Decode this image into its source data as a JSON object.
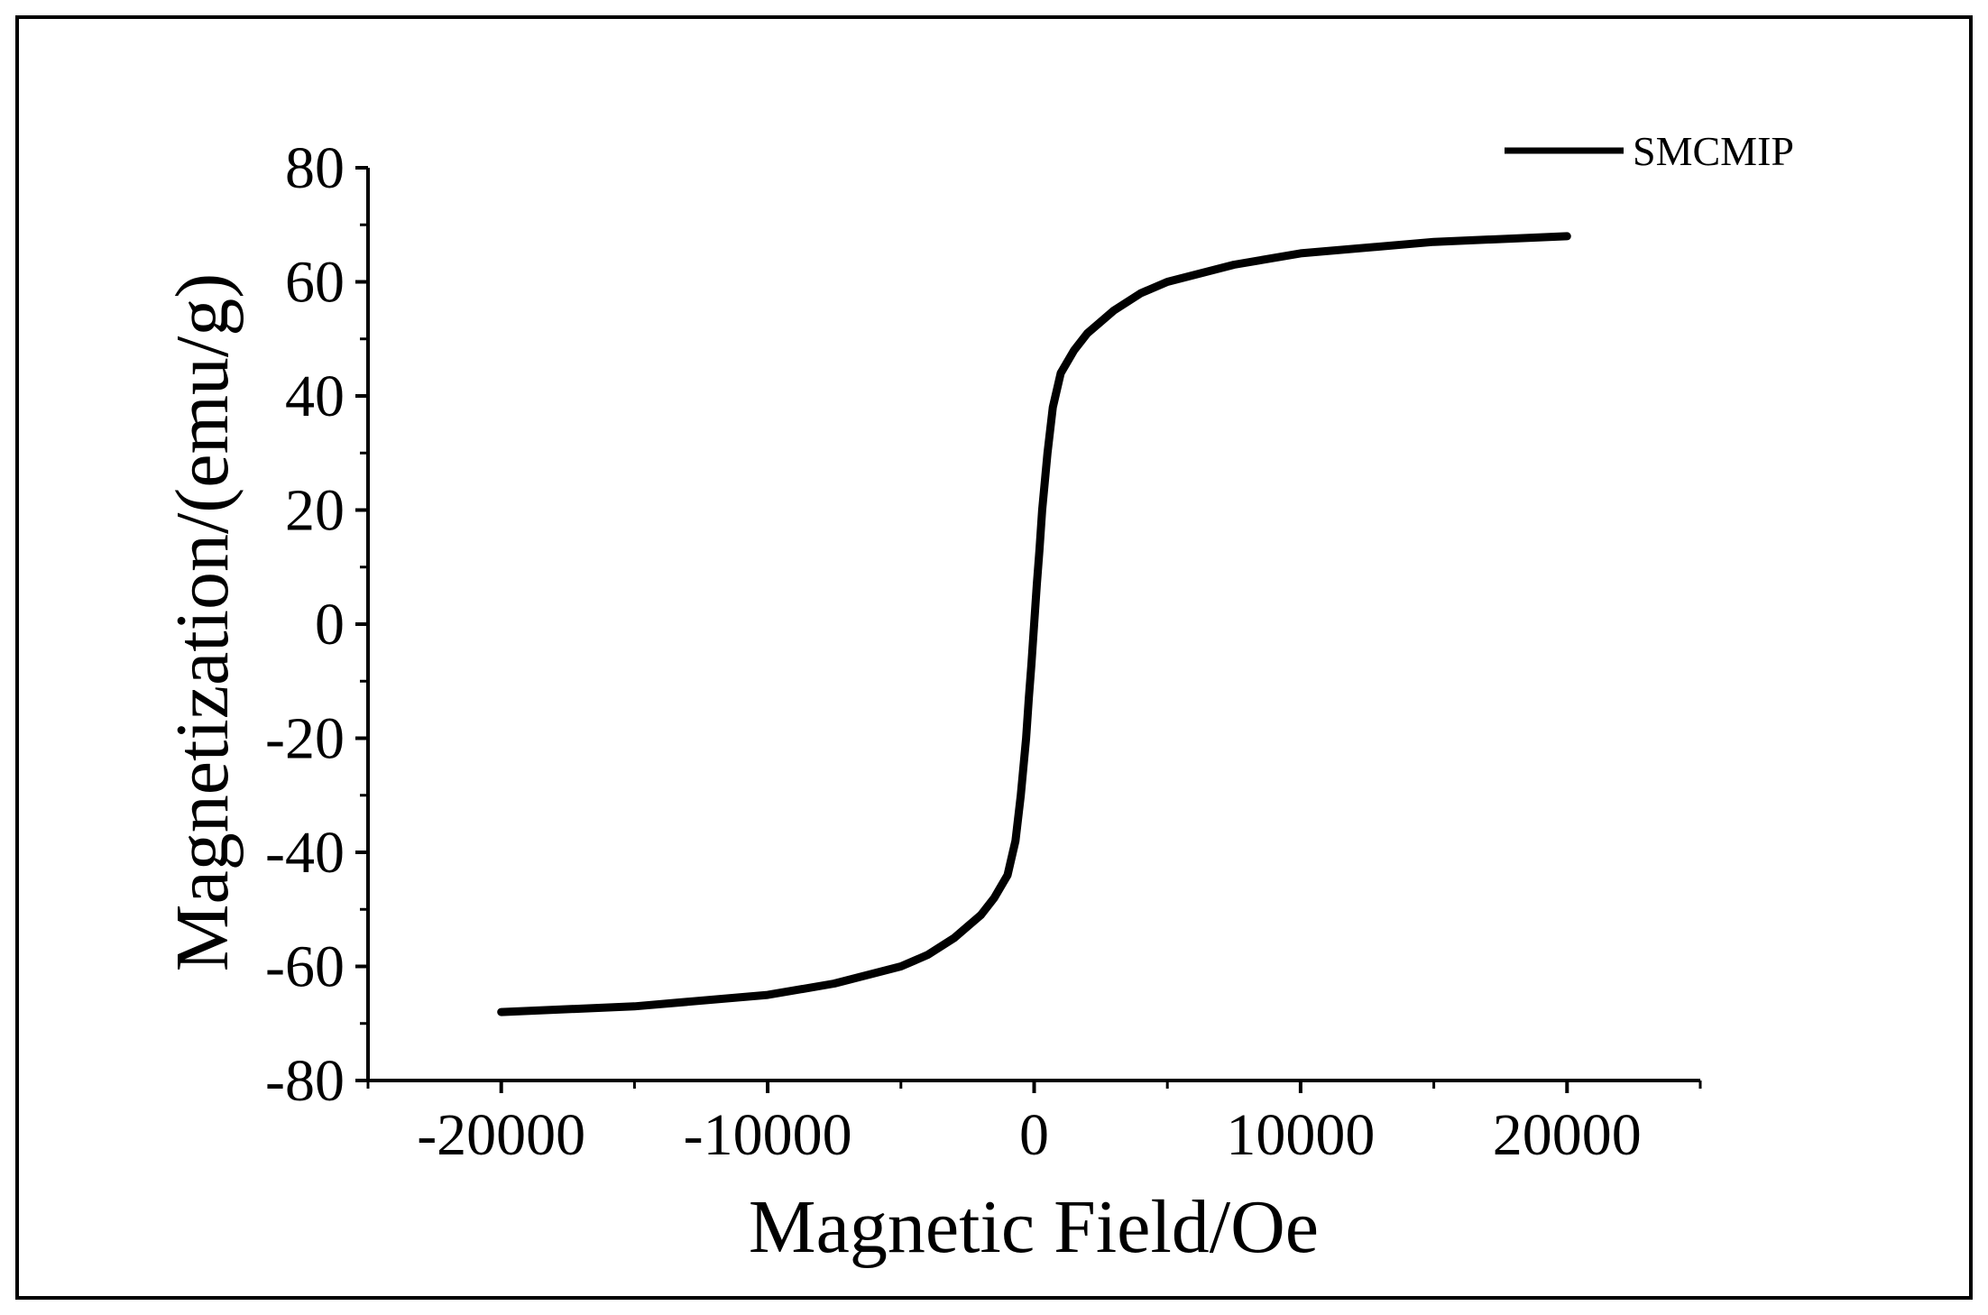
{
  "colors": {
    "background": "#ffffff",
    "frame": "#000000",
    "curve": "#000000",
    "axis": "#000000"
  },
  "chart_data": {
    "type": "line",
    "title": "",
    "xlabel": "Magnetic Field/Oe",
    "ylabel": "Magnetization/(emu/g)",
    "xlim": [
      -25000,
      25000
    ],
    "ylim": [
      -80,
      80
    ],
    "x_ticks": [
      -20000,
      -10000,
      0,
      10000,
      20000
    ],
    "x_tick_labels": [
      "-20000",
      "-10000",
      "0",
      "10000",
      "20000"
    ],
    "y_ticks": [
      -80,
      -60,
      -40,
      -20,
      0,
      20,
      40,
      60,
      80
    ],
    "y_tick_labels": [
      "-80",
      "-60",
      "-40",
      "-20",
      "0",
      "20",
      "40",
      "60",
      "80"
    ],
    "grid": false,
    "legend": {
      "position": "top-right",
      "entries": [
        "SMCMIP"
      ]
    },
    "series": [
      {
        "name": "SMCMIP",
        "color": "#000000",
        "x": [
          -20000,
          -15000,
          -10000,
          -7500,
          -5000,
          -4000,
          -3000,
          -2500,
          -2000,
          -1500,
          -1000,
          -700,
          -500,
          -300,
          -200,
          -100,
          0,
          100,
          200,
          300,
          500,
          700,
          1000,
          1500,
          2000,
          2500,
          3000,
          4000,
          5000,
          7500,
          10000,
          15000,
          20000
        ],
        "y": [
          -68,
          -67,
          -65,
          -63,
          -60,
          -58,
          -55,
          -53,
          -51,
          -48,
          -44,
          -38,
          -30,
          -20,
          -13,
          -7,
          0,
          7,
          13,
          20,
          30,
          38,
          44,
          48,
          51,
          53,
          55,
          58,
          60,
          63,
          65,
          67,
          68
        ]
      }
    ]
  }
}
